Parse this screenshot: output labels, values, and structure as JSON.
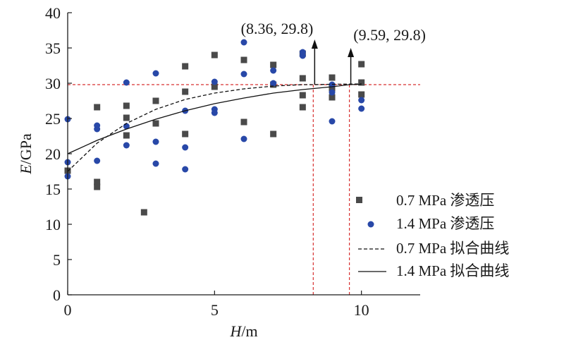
{
  "chart_data": {
    "type": "scatter",
    "xlabel_italic": "H",
    "xlabel_unit": "/m",
    "ylabel_italic": "E",
    "ylabel_unit": "/GPa",
    "xlim": [
      0,
      12
    ],
    "ylim": [
      0,
      40
    ],
    "x_ticks": [
      0,
      5,
      10
    ],
    "y_ticks": [
      0,
      5,
      10,
      15,
      20,
      25,
      30,
      35,
      40
    ],
    "grid": false,
    "legend_position": "right",
    "series": [
      {
        "name": "0.7 MPa 渗透压",
        "marker": "square",
        "color": "#4a4a4a",
        "points": [
          [
            0,
            17.6
          ],
          [
            1,
            26.6
          ],
          [
            1,
            16.0
          ],
          [
            1,
            15.3
          ],
          [
            2,
            26.8
          ],
          [
            2,
            25.1
          ],
          [
            2,
            22.6
          ],
          [
            2.6,
            11.7
          ],
          [
            3,
            27.5
          ],
          [
            3,
            24.3
          ],
          [
            4,
            32.4
          ],
          [
            4,
            28.8
          ],
          [
            4,
            22.8
          ],
          [
            5,
            34.0
          ],
          [
            5,
            29.5
          ],
          [
            6,
            33.3
          ],
          [
            6,
            24.5
          ],
          [
            7,
            32.6
          ],
          [
            7,
            29.8
          ],
          [
            7,
            22.8
          ],
          [
            8,
            34.2
          ],
          [
            8,
            30.7
          ],
          [
            8,
            28.3
          ],
          [
            8,
            26.6
          ],
          [
            9,
            30.8
          ],
          [
            9,
            29.3
          ],
          [
            9,
            28.0
          ],
          [
            10,
            32.7
          ],
          [
            10,
            30.1
          ],
          [
            10,
            28.4
          ]
        ]
      },
      {
        "name": "1.4 MPa 渗透压",
        "marker": "circle",
        "color": "#2848a8",
        "points": [
          [
            0,
            24.9
          ],
          [
            0,
            18.8
          ],
          [
            0,
            16.8
          ],
          [
            1,
            24.0
          ],
          [
            1,
            23.5
          ],
          [
            1,
            19.0
          ],
          [
            2,
            30.1
          ],
          [
            2,
            23.9
          ],
          [
            2,
            21.2
          ],
          [
            3,
            31.4
          ],
          [
            3,
            21.7
          ],
          [
            3,
            18.6
          ],
          [
            4,
            26.1
          ],
          [
            4,
            20.9
          ],
          [
            4,
            17.8
          ],
          [
            5,
            30.2
          ],
          [
            5,
            26.3
          ],
          [
            5,
            25.8
          ],
          [
            6,
            35.8
          ],
          [
            6,
            31.3
          ],
          [
            6,
            22.1
          ],
          [
            7,
            31.8
          ],
          [
            7,
            30.0
          ],
          [
            8,
            34.4
          ],
          [
            8,
            33.9
          ],
          [
            9,
            29.8
          ],
          [
            9,
            28.7
          ],
          [
            9,
            24.6
          ],
          [
            10,
            27.6
          ],
          [
            10,
            26.4
          ]
        ]
      }
    ],
    "fit_lines": [
      {
        "name": "0.7 MPa 拟合曲线",
        "style": "dashed",
        "color": "#111111",
        "x": [
          0,
          1,
          2,
          3,
          4,
          5,
          6,
          7,
          8,
          8.36,
          9,
          10
        ],
        "y": [
          17.5,
          21.5,
          24.3,
          26.3,
          27.7,
          28.6,
          29.2,
          29.6,
          29.8,
          29.8,
          29.85,
          29.9
        ]
      },
      {
        "name": "1.4 MPa 拟合曲线",
        "style": "solid",
        "color": "#111111",
        "x": [
          0,
          1,
          2,
          3,
          4,
          5,
          6,
          7,
          8,
          9,
          9.59,
          10
        ],
        "y": [
          20.0,
          21.9,
          23.5,
          24.9,
          26.1,
          27.1,
          27.9,
          28.6,
          29.1,
          29.5,
          29.8,
          29.85
        ]
      }
    ],
    "reference": {
      "y": 29.8,
      "color": "#d83030",
      "style": "dashed",
      "verticals": [
        8.36,
        9.59
      ]
    },
    "annotations": [
      {
        "text": "(8.36, 29.8)",
        "x": 8.36,
        "y": 29.8
      },
      {
        "text": "(9.59, 29.8)",
        "x": 9.59,
        "y": 29.8
      }
    ]
  }
}
